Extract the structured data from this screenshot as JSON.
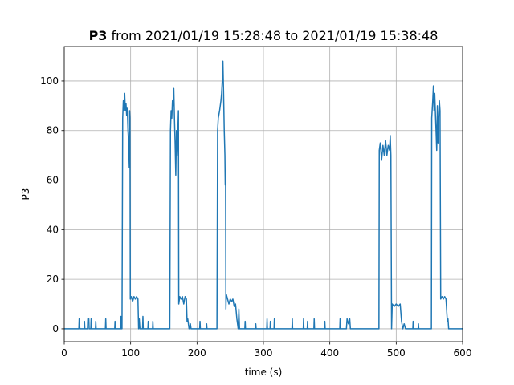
{
  "chart_data": {
    "type": "line",
    "title_bold": "P3",
    "title": "from 2021/01/19 15:28:48 to 2021/01/19 15:38:48",
    "xlabel": "time (s)",
    "ylabel": "P3",
    "xlim": [
      0,
      600
    ],
    "xticks": [
      0,
      100,
      200,
      300,
      400,
      500,
      600
    ],
    "ylim": [
      -5.2,
      113.9
    ],
    "yticks": [
      0,
      20,
      40,
      60,
      80,
      100
    ],
    "grid": true,
    "color": "#1f77b4",
    "x": [
      0,
      22,
      22.5,
      23.5,
      30,
      30.5,
      31,
      35,
      35.5,
      37,
      37.5,
      40,
      40.5,
      41,
      47,
      47.5,
      48,
      62,
      62.5,
      63,
      76,
      76.5,
      77,
      85,
      85.5,
      86,
      87,
      88,
      89,
      90,
      91,
      92,
      93,
      94,
      95,
      96,
      97,
      98,
      98.5,
      99,
      99.5,
      101,
      103,
      105,
      107,
      109,
      111,
      112,
      113,
      114,
      118,
      118.5,
      119,
      126,
      126.5,
      127,
      133,
      133.5,
      134,
      159,
      160,
      161,
      162,
      163,
      164,
      165,
      166,
      167,
      168,
      169,
      170,
      171,
      172,
      172.5,
      174,
      176,
      178,
      180,
      182,
      184,
      185,
      186,
      188,
      190,
      191,
      204,
      204.5,
      205,
      214,
      214.5,
      215,
      230,
      231,
      232,
      234,
      236,
      237,
      238,
      239,
      240,
      241,
      242,
      242.5,
      243,
      243.5,
      244,
      246,
      248,
      250,
      252,
      254,
      256,
      258,
      260,
      262,
      263,
      264,
      272,
      272.5,
      273,
      288,
      288.5,
      289,
      305,
      305.5,
      306,
      310,
      310.5,
      311,
      316,
      316.5,
      317,
      343,
      343.5,
      344,
      360,
      360.5,
      361,
      366,
      366.5,
      367,
      376,
      376.5,
      377,
      392,
      392.5,
      393,
      415,
      415.5,
      416,
      425,
      426,
      428,
      430,
      431,
      474,
      474.5,
      476,
      478,
      480,
      482,
      484,
      486,
      488,
      490,
      491,
      492,
      493,
      494,
      497,
      500,
      503,
      506,
      508,
      510,
      512,
      514,
      525,
      525.5,
      526,
      533,
      533.5,
      534,
      553,
      553.5,
      555,
      556,
      557,
      558,
      560,
      561,
      562,
      563,
      564,
      565,
      566,
      567,
      569,
      571,
      573,
      575,
      577,
      578,
      579,
      600
    ],
    "values": [
      0,
      0,
      4,
      0,
      0,
      3,
      0,
      0,
      4,
      4,
      0,
      0,
      4,
      0,
      0,
      3,
      0,
      0,
      4,
      0,
      0,
      3,
      0,
      0,
      5,
      0,
      0,
      85,
      92,
      88,
      95,
      88,
      91,
      86,
      89,
      80,
      75,
      65,
      88,
      85,
      12,
      13,
      11,
      13,
      12,
      13,
      12,
      0,
      4,
      0,
      0,
      5,
      0,
      0,
      3,
      0,
      0,
      3,
      0,
      0,
      80,
      88,
      85,
      92,
      90,
      97,
      85,
      75,
      62,
      80,
      70,
      78,
      88,
      10,
      13,
      12,
      13,
      10,
      13,
      12,
      3,
      4,
      0,
      2,
      0,
      0,
      3,
      0,
      0,
      2,
      0,
      0,
      80,
      85,
      88,
      92,
      95,
      100,
      108,
      95,
      80,
      70,
      58,
      62,
      8,
      14,
      12,
      10,
      12,
      11,
      12,
      9,
      10,
      4,
      0,
      8,
      0,
      0,
      3,
      0,
      0,
      2,
      0,
      0,
      4,
      0,
      0,
      3,
      0,
      0,
      4,
      0,
      0,
      4,
      0,
      0,
      4,
      0,
      0,
      3,
      0,
      0,
      4,
      0,
      0,
      3,
      0,
      0,
      4,
      0,
      0,
      4,
      2,
      4,
      0,
      0,
      72,
      75,
      68,
      74,
      70,
      76,
      70,
      74,
      72,
      78,
      70,
      0,
      10,
      9,
      10,
      9,
      10,
      3,
      0,
      2,
      0,
      0,
      3,
      0,
      0,
      2,
      0,
      0,
      85,
      92,
      98,
      88,
      95,
      80,
      72,
      90,
      75,
      85,
      92,
      88,
      12,
      13,
      12,
      13,
      12,
      3,
      4,
      0,
      0
    ]
  }
}
